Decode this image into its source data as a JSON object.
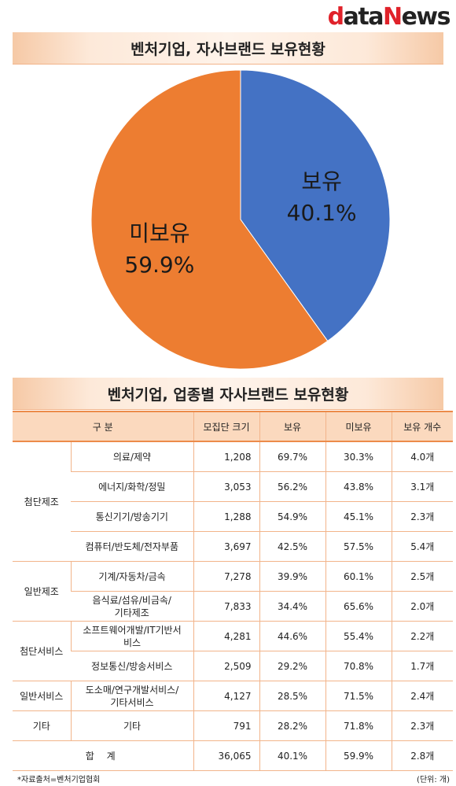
{
  "logo": {
    "part1": "d",
    "part2": "ata",
    "part3": "N",
    "part4": "ews"
  },
  "pie_title": "벤처기업, 자사브랜드 보유현황",
  "table_title": "벤처기업, 업종별 자사브랜드 보유현황",
  "chart_data": [
    {
      "type": "pie",
      "title": "벤처기업, 자사브랜드 보유현황",
      "categories": [
        "보유",
        "미보유"
      ],
      "values": [
        40.1,
        59.9
      ],
      "value_labels": [
        "40.1%",
        "59.9%"
      ],
      "colors": [
        "#4472c4",
        "#ed7d31"
      ]
    },
    {
      "type": "table",
      "title": "벤처기업, 업종별 자사브랜드 보유현황",
      "columns": [
        "구 분",
        "모집단 크기",
        "보유",
        "미보유",
        "보유 개수"
      ],
      "rows": [
        {
          "group": "첨단제조",
          "sub": "의료/제약",
          "population": "1,208",
          "own": "69.7%",
          "not_own": "30.3%",
          "count": "4.0개"
        },
        {
          "group": "첨단제조",
          "sub": "에너지/화학/정밀",
          "population": "3,053",
          "own": "56.2%",
          "not_own": "43.8%",
          "count": "3.1개"
        },
        {
          "group": "첨단제조",
          "sub": "통신기기/방송기기",
          "population": "1,288",
          "own": "54.9%",
          "not_own": "45.1%",
          "count": "2.3개"
        },
        {
          "group": "첨단제조",
          "sub": "컴퓨터/반도체/전자부품",
          "population": "3,697",
          "own": "42.5%",
          "not_own": "57.5%",
          "count": "5.4개"
        },
        {
          "group": "일반제조",
          "sub": "기계/자동차/금속",
          "population": "7,278",
          "own": "39.9%",
          "not_own": "60.1%",
          "count": "2.5개"
        },
        {
          "group": "일반제조",
          "sub": "음식료/섬유/비금속/기타제조",
          "population": "7,833",
          "own": "34.4%",
          "not_own": "65.6%",
          "count": "2.0개"
        },
        {
          "group": "첨단서비스",
          "sub": "소프트웨어개발/IT기반서비스",
          "population": "4,281",
          "own": "44.6%",
          "not_own": "55.4%",
          "count": "2.2개"
        },
        {
          "group": "첨단서비스",
          "sub": "정보통신/방송서비스",
          "population": "2,509",
          "own": "29.2%",
          "not_own": "70.8%",
          "count": "1.7개"
        },
        {
          "group": "일반서비스",
          "sub": "도소매/연구개발서비스/기타서비스",
          "population": "4,127",
          "own": "28.5%",
          "not_own": "71.5%",
          "count": "2.4개"
        },
        {
          "group": "기타",
          "sub": "기타",
          "population": "791",
          "own": "28.2%",
          "not_own": "71.8%",
          "count": "2.3개"
        }
      ],
      "total": {
        "label": "합 계",
        "population": "36,065",
        "own": "40.1%",
        "not_own": "59.9%",
        "count": "2.8개"
      }
    }
  ],
  "table": {
    "header": {
      "category": "구 분",
      "population": "모집단 크기",
      "own": "보유",
      "not_own": "미보유",
      "count": "보유 개수"
    },
    "groups": {
      "g1": "첨단제조",
      "g2": "일반제조",
      "g3": "첨단서비스",
      "g4": "일반서비스",
      "g5": "기타"
    },
    "rows": [
      {
        "sub": "의료/제약",
        "population": "1,208",
        "own": "69.7%",
        "not_own": "30.3%",
        "count": "4.0개"
      },
      {
        "sub": "에너지/화학/정밀",
        "population": "3,053",
        "own": "56.2%",
        "not_own": "43.8%",
        "count": "3.1개"
      },
      {
        "sub": "통신기기/방송기기",
        "population": "1,288",
        "own": "54.9%",
        "not_own": "45.1%",
        "count": "2.3개"
      },
      {
        "sub": "컴퓨터/반도체/전자부품",
        "population": "3,697",
        "own": "42.5%",
        "not_own": "57.5%",
        "count": "5.4개"
      },
      {
        "sub": "기계/자동차/금속",
        "population": "7,278",
        "own": "39.9%",
        "not_own": "60.1%",
        "count": "2.5개"
      },
      {
        "sub_line1": "음식료/섬유/비금속/",
        "sub_line2": "기타제조",
        "population": "7,833",
        "own": "34.4%",
        "not_own": "65.6%",
        "count": "2.0개"
      },
      {
        "sub_line1": "소프트웨어개발/IT기반서",
        "sub_line2": "비스",
        "population": "4,281",
        "own": "44.6%",
        "not_own": "55.4%",
        "count": "2.2개"
      },
      {
        "sub": "정보통신/방송서비스",
        "population": "2,509",
        "own": "29.2%",
        "not_own": "70.8%",
        "count": "1.7개"
      },
      {
        "sub_line1": "도소매/연구개발서비스/",
        "sub_line2": "기타서비스",
        "population": "4,127",
        "own": "28.5%",
        "not_own": "71.5%",
        "count": "2.4개"
      },
      {
        "sub": "기타",
        "population": "791",
        "own": "28.2%",
        "not_own": "71.8%",
        "count": "2.3개"
      }
    ],
    "total": {
      "label": "합 계",
      "population": "36,065",
      "own": "40.1%",
      "not_own": "59.9%",
      "count": "2.8개"
    }
  },
  "footer": {
    "source": "*자료출처=벤처기업협회",
    "unit": "(단위: 개)"
  }
}
